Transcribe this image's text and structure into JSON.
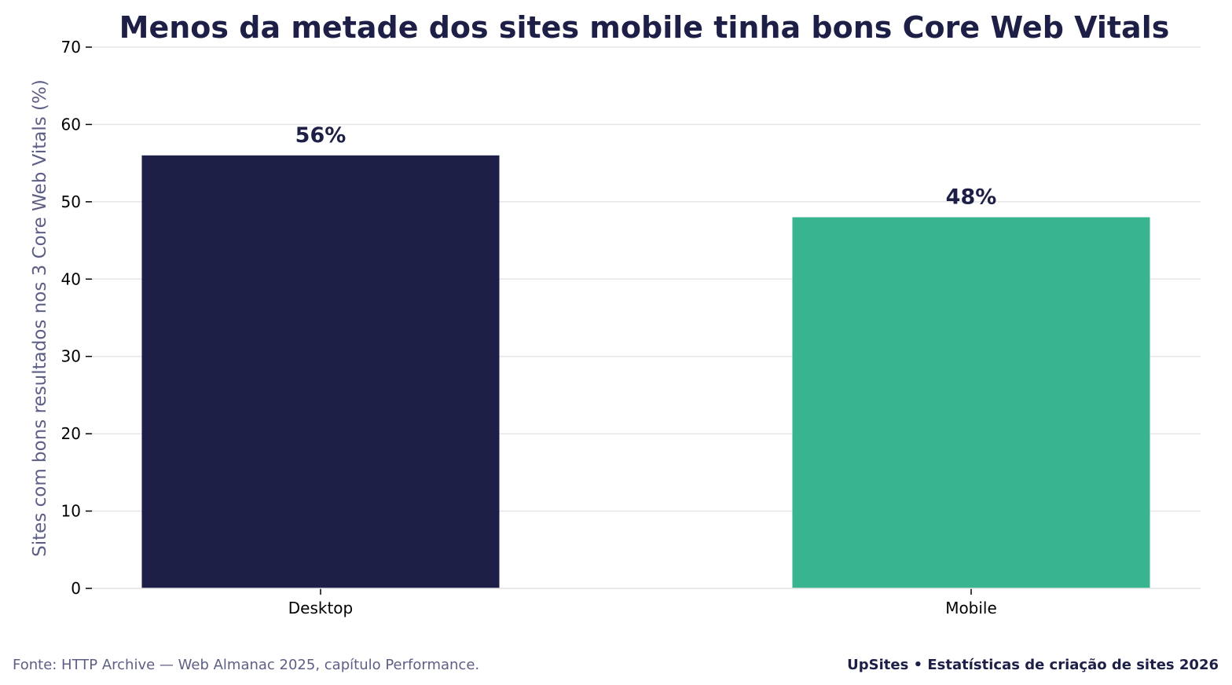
{
  "chart_data": {
    "type": "bar",
    "title": "Menos da metade dos sites mobile tinha bons Core Web Vitals",
    "xlabel": "",
    "ylabel": "Sites com bons resultados nos 3 Core Web Vitals (%)",
    "categories": [
      "Desktop",
      "Mobile"
    ],
    "values": [
      56,
      48
    ],
    "value_labels": [
      "56%",
      "48%"
    ],
    "colors": [
      "#1e1f47",
      "#38b48e"
    ],
    "ylim": [
      0,
      70
    ],
    "yticks": [
      "0",
      "10",
      "20",
      "30",
      "40",
      "50",
      "60",
      "70"
    ],
    "grid": "horizontal"
  },
  "footer": {
    "source": "Fonte: HTTP Archive — Web Almanac 2025, capítulo Performance.",
    "credit": "UpSites • Estatísticas de criação de sites 2026"
  },
  "colors": {
    "grid": "#e6e6ea",
    "text_dark": "#1e1f47",
    "text_muted": "#5d5f85"
  }
}
